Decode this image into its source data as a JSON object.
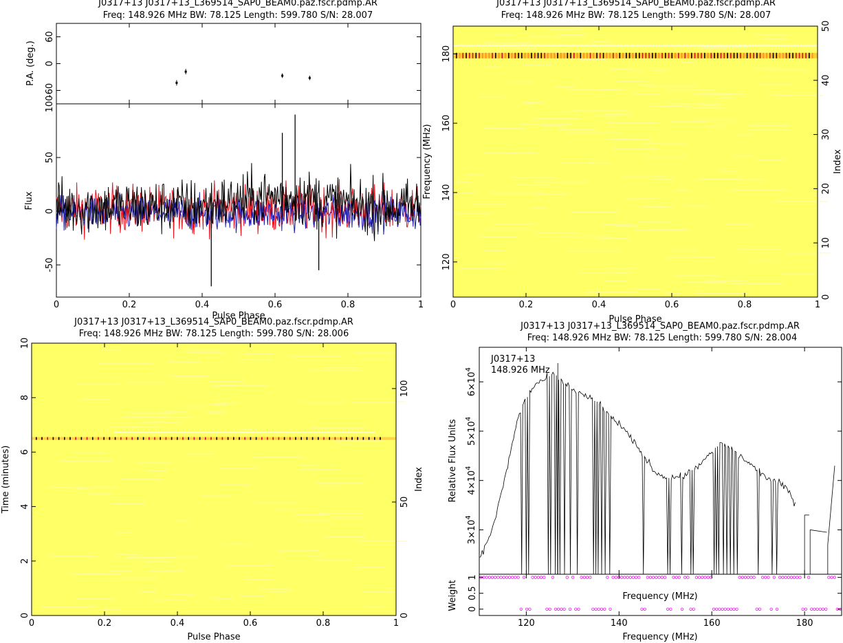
{
  "chart_data": [
    {
      "id": "profile",
      "type": "line",
      "title": "J0317+13 J0317+13_L369514_SAP0_BEAM0.paz.fscr.pdmp.AR",
      "subtitle": "Freq: 148.926 MHz BW: 78.125 Length: 599.780 S/N: 28.007",
      "xlabel": "Pulse Phase",
      "xlim": [
        0,
        1
      ],
      "xticks": [
        "0",
        "0.2",
        "0.4",
        "0.6",
        "0.8",
        "1"
      ],
      "pa_panel": {
        "ylabel": "P.A. (deg.)",
        "ylim": [
          -90,
          90
        ],
        "yticks": [
          "60",
          "0",
          "-60"
        ],
        "points": [
          {
            "x": 0.33,
            "y": -43,
            "err": 6
          },
          {
            "x": 0.355,
            "y": -18,
            "err": 6
          },
          {
            "x": 0.62,
            "y": -27,
            "err": 5
          },
          {
            "x": 0.695,
            "y": -32,
            "err": 5
          }
        ]
      },
      "flux_panel": {
        "ylabel": "Flux",
        "ylim": [
          -80,
          100
        ],
        "yticks": [
          "100",
          "50",
          "0",
          "-50"
        ],
        "series_colors": [
          "#000000",
          "#e8141e",
          "#1e1eb4"
        ],
        "peaks": [
          {
            "x": 0.655,
            "y": 90
          },
          {
            "x": 0.425,
            "y": -70
          },
          {
            "x": 0.62,
            "y": 73
          },
          {
            "x": 0.72,
            "y": -55
          }
        ]
      }
    },
    {
      "id": "freq-phase",
      "type": "heatmap",
      "title": "J0317+13 J0317+13_L369514_SAP0_BEAM0.paz.fscr.pdmp.AR",
      "subtitle": "Freq: 148.926 MHz BW: 78.125 Length: 599.780 S/N: 28.007",
      "xlabel": "Pulse Phase",
      "ylabel": "Frequency (MHz)",
      "y2label": "Index",
      "xlim": [
        0,
        1
      ],
      "ylim": [
        109.86,
        187.99
      ],
      "y2lim": [
        0,
        50
      ],
      "xticks": [
        "0",
        "0.2",
        "0.4",
        "0.6",
        "0.8",
        "1"
      ],
      "yticks": [
        "120",
        "140",
        "160",
        "180"
      ],
      "y2ticks": [
        "0",
        "10",
        "20",
        "30",
        "40",
        "50"
      ],
      "background_color": "#ffff66",
      "bright_row_freq": 179.5
    },
    {
      "id": "time-phase",
      "type": "heatmap",
      "title": "J0317+13 J0317+13_L369514_SAP0_BEAM0.paz.fscr.pdmp.AR",
      "subtitle": "Freq: 148.926 MHz BW: 78.125 Length: 599.780 S/N: 28.006",
      "xlabel": "Pulse Phase",
      "ylabel": "Time (minutes)",
      "y2label": "Index",
      "xlim": [
        0,
        1
      ],
      "ylim": [
        0,
        10
      ],
      "y2lim": [
        0,
        120
      ],
      "xticks": [
        "0",
        "0.2",
        "0.4",
        "0.6",
        "0.8",
        "1"
      ],
      "yticks": [
        "0",
        "2",
        "4",
        "6",
        "8",
        "10"
      ],
      "y2ticks": [
        "0",
        "50",
        "100"
      ],
      "background_color": "#ffff66",
      "bright_row_time": 6.5
    },
    {
      "id": "bandpass",
      "type": "line",
      "title": "J0317+13 J0317+13_L369514_SAP0_BEAM0.paz.fscr.pdmp.AR",
      "subtitle": "Freq: 148.926 MHz BW: 78.125 Length: 599.780 S/N: 28.004",
      "annotation_lines": [
        "J0317+13",
        "148.926 MHz"
      ],
      "xlabel": "Frequency (MHz)",
      "xlabel_mid": "Frequency (MHz)",
      "ylabel": "Relative Flux Units",
      "weight_label": "Weight",
      "xlim": [
        109.86,
        187.99
      ],
      "ylim": [
        21000,
        67000
      ],
      "xticks": [
        "120",
        "140",
        "160",
        "180"
      ],
      "ytick_mantissas": [
        "3",
        "4",
        "5",
        "6"
      ],
      "ytick_base": "×10",
      "ytick_exp": "4",
      "weight_ylim": [
        -0.2,
        1.1
      ],
      "weight_yticks": [
        "0",
        "0.5",
        "1"
      ],
      "weight_color": "#e61ee6",
      "profile": [
        [
          110,
          24000
        ],
        [
          113,
          31000
        ],
        [
          116,
          43000
        ],
        [
          118,
          52000
        ],
        [
          120,
          57000
        ],
        [
          122,
          59500
        ],
        [
          124,
          60500
        ],
        [
          126,
          61500
        ],
        [
          128,
          60000
        ],
        [
          130,
          58500
        ],
        [
          133,
          57000
        ],
        [
          136,
          55500
        ],
        [
          138,
          53000
        ],
        [
          140,
          51500
        ],
        [
          143,
          48000
        ],
        [
          146,
          44000
        ],
        [
          148,
          41500
        ],
        [
          151,
          40500
        ],
        [
          154,
          41000
        ],
        [
          157,
          43000
        ],
        [
          160,
          45500
        ],
        [
          162,
          47500
        ],
        [
          164,
          46500
        ],
        [
          166,
          45000
        ],
        [
          168,
          43500
        ],
        [
          170,
          42000
        ],
        [
          172,
          40500
        ],
        [
          174,
          39800
        ],
        [
          176,
          38500
        ],
        [
          178,
          35500
        ]
      ],
      "tall_spike": [
        126.8,
        63800
      ],
      "zapped_channels": [
        119,
        120,
        120.5,
        124.8,
        125.2,
        126.2,
        126.8,
        127.3,
        128.2,
        129.5,
        131,
        134.5,
        135,
        135.5,
        136.2,
        137,
        138,
        145.2,
        150.5,
        151,
        153.5,
        155.5,
        156,
        160.5,
        161,
        161.5,
        162.5,
        163.2,
        164,
        164.8,
        165.5,
        170,
        173,
        174,
        179.5,
        180.2
      ],
      "tail_pieces": [
        [
          180,
          33000
        ],
        [
          181,
          33000
        ],
        [
          181.2,
          30000
        ],
        [
          184.8,
          29500
        ],
        [
          185,
          27000
        ],
        [
          186.5,
          43000
        ],
        [
          187.5,
          42000
        ]
      ]
    }
  ]
}
